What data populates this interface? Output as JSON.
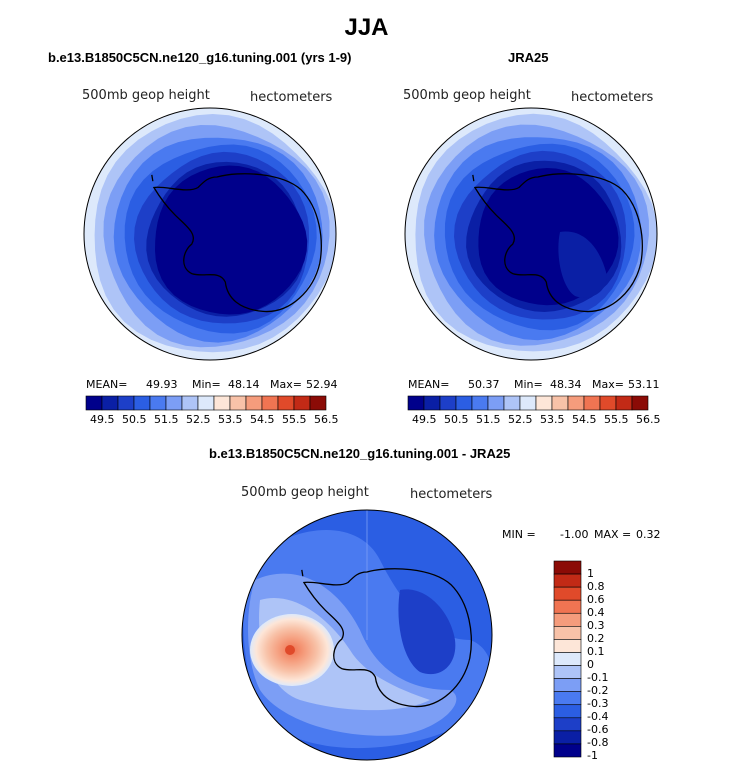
{
  "title": "JJA",
  "colors": {
    "palette": [
      "#00008b",
      "#0a1fa5",
      "#1d3fc8",
      "#2b5ee3",
      "#4a7af0",
      "#7c9ef5",
      "#aec4f7",
      "#dde9fb",
      "#fde6d8",
      "#f8c2a8",
      "#f59c7c",
      "#f07452",
      "#e04a2a",
      "#c22a16",
      "#8b0b06"
    ],
    "continent_outline": "#000000"
  },
  "chart_data": [
    {
      "type": "map",
      "title": "b.e13.B1850C5CN.ne120_g16.tuning.001 (yrs 1-9)",
      "left_label": "500mb geop height",
      "right_label": "hectometers",
      "stats": {
        "mean_label": "MEAN=",
        "mean": "49.93",
        "min_label": "Min=",
        "min": "48.14",
        "max_label": "Max=",
        "max": "52.94"
      },
      "levels": [
        "49.5",
        "50.5",
        "51.5",
        "52.5",
        "53.5",
        "54.5",
        "55.5",
        "56.5"
      ],
      "level_values": [
        49.5,
        50,
        50.5,
        51,
        51.5,
        52,
        52.5,
        53,
        53.5,
        54,
        54.5,
        55,
        55.5,
        56,
        56.5
      ],
      "bands": [
        {
          "level": 52.5,
          "color_index": 7
        },
        {
          "level": 52.0,
          "color_index": 6
        },
        {
          "level": 51.5,
          "color_index": 5
        },
        {
          "level": 51.0,
          "color_index": 4
        },
        {
          "level": 50.5,
          "color_index": 3
        },
        {
          "level": 50.0,
          "color_index": 2
        },
        {
          "level": 49.5,
          "color_index": 1
        },
        {
          "level": 49.0,
          "color_index": 0
        }
      ]
    },
    {
      "type": "map",
      "title": "JRA25",
      "left_label": "500mb geop height",
      "right_label": "hectometers",
      "stats": {
        "mean_label": "MEAN=",
        "mean": "50.37",
        "min_label": "Min=",
        "min": "48.34",
        "max_label": "Max=",
        "max": "53.11"
      },
      "levels": [
        "49.5",
        "50.5",
        "51.5",
        "52.5",
        "53.5",
        "54.5",
        "55.5",
        "56.5"
      ],
      "level_values": [
        49.5,
        50,
        50.5,
        51,
        51.5,
        52,
        52.5,
        53,
        53.5,
        54,
        54.5,
        55,
        55.5,
        56,
        56.5
      ],
      "bands": [
        {
          "level": 53.0,
          "color_index": 7
        },
        {
          "level": 52.5,
          "color_index": 6
        },
        {
          "level": 52.0,
          "color_index": 5
        },
        {
          "level": 51.5,
          "color_index": 4
        },
        {
          "level": 51.0,
          "color_index": 3
        },
        {
          "level": 50.5,
          "color_index": 2
        },
        {
          "level": 50.0,
          "color_index": 1
        },
        {
          "level": 49.5,
          "color_index": 0
        }
      ]
    },
    {
      "type": "map",
      "title": "b.e13.B1850C5CN.ne120_g16.tuning.001 - JRA25",
      "left_label": "500mb geop height",
      "right_label": "hectometers",
      "stats": {
        "min_label": "MIN =",
        "min": "-1.00",
        "max_label": "MAX =",
        "max": "0.32"
      },
      "levels": [
        "1",
        "0.8",
        "0.6",
        "0.4",
        "0.3",
        "0.2",
        "0.1",
        "0",
        "-0.1",
        "-0.2",
        "-0.3",
        "-0.4",
        "-0.6",
        "-0.8",
        "-1"
      ],
      "level_values": [
        1,
        0.8,
        0.6,
        0.4,
        0.3,
        0.2,
        0.1,
        0,
        -0.1,
        -0.2,
        -0.3,
        -0.4,
        -0.6,
        -0.8,
        -1
      ]
    }
  ]
}
